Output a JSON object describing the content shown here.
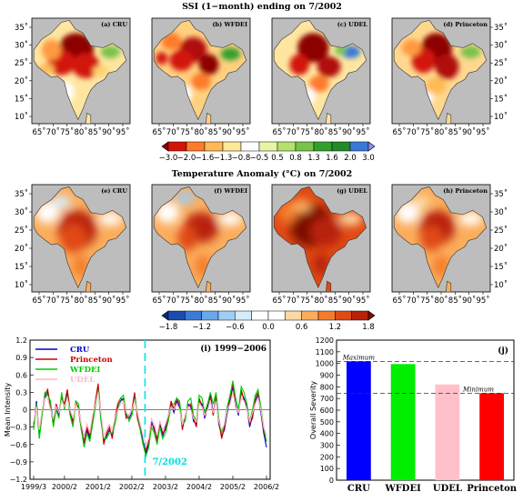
{
  "titles": {
    "ssi": "SSI (1−month) ending on 7/2002",
    "temp": "Temperature Anomaly (°C) on 7/2002"
  },
  "map_lon_ticks": [
    "65˚",
    "70˚",
    "75˚",
    "80˚",
    "85˚",
    "90˚",
    "95˚"
  ],
  "map_lat_ticks": [
    "35˚",
    "30˚",
    "25˚",
    "20˚",
    "15˚",
    "10˚"
  ],
  "ssi_panels": [
    {
      "tag": "(a) CRU"
    },
    {
      "tag": "(b) WFDEI"
    },
    {
      "tag": "(c) UDEL"
    },
    {
      "tag": "(d) Princeton"
    }
  ],
  "temp_panels": [
    {
      "tag": "(e) CRU"
    },
    {
      "tag": "(f) WFDEI"
    },
    {
      "tag": "(g) UDEL"
    },
    {
      "tag": "(h) Princeton"
    }
  ],
  "ssi_colorbar": {
    "labels": [
      "−3.0",
      "−2.0",
      "−1.6",
      "−1.3",
      "−0.8",
      "−0.5",
      "0.5",
      "0.8",
      "1.3",
      "1.6",
      "2.0",
      "3.0"
    ],
    "colors": [
      "#8c0000",
      "#d2140a",
      "#ff7a2a",
      "#ffb955",
      "#ffe89a",
      "#ffffff",
      "#e8f5a8",
      "#b5e06e",
      "#78c34a",
      "#33a02c",
      "#238a2a",
      "#3a78d8",
      "#8c8cf0"
    ]
  },
  "temp_colorbar": {
    "labels": [
      "−1.8",
      "−1.2",
      "−0.6",
      "0.0",
      "0.6",
      "1.2",
      "1.8"
    ],
    "colors": [
      "#0a2a7a",
      "#1a4cb0",
      "#3b7bd8",
      "#6aa8ec",
      "#9fcdf6",
      "#d5ecfc",
      "#ffffff",
      "#ffffff",
      "#fdd9a4",
      "#fbad5c",
      "#f47d2a",
      "#e04a14",
      "#b82008",
      "#7d0a02"
    ]
  },
  "chart_data": [
    {
      "type": "line",
      "title": "(i) 1999−2006",
      "ylabel": "Mean Intensity",
      "xlabel": "",
      "ylim": [
        -1.2,
        1.2
      ],
      "yticks": [
        "1.2",
        "0.9",
        "0.6",
        "0.3",
        "0",
        "−0.3",
        "−0.6",
        "−0.9",
        "−1.2"
      ],
      "xtick_labels": [
        "1999/3",
        "2000/2",
        "2001/2",
        "2002/2",
        "2003/2",
        "2004/2",
        "2005/2",
        "2006/2"
      ],
      "xtick_index": [
        0,
        11,
        23,
        35,
        47,
        59,
        71,
        83
      ],
      "event_index": 40,
      "event_label": "7/2002",
      "series": [
        {
          "name": "CRU",
          "color": "#0000cc",
          "values": [
            -0.3,
            0.15,
            -0.45,
            -0.05,
            0.2,
            0.3,
            0.1,
            -0.2,
            0.05,
            -0.1,
            0.25,
            0.05,
            0.3,
            -0.05,
            -0.2,
            0.1,
            0.05,
            -0.3,
            -0.6,
            -0.35,
            -0.5,
            -0.2,
            0.1,
            0.4,
            -0.15,
            -0.55,
            -0.45,
            -0.35,
            -0.45,
            -0.2,
            0.05,
            0.15,
            0.2,
            -0.1,
            -0.15,
            -0.05,
            0.25,
            -0.1,
            -0.3,
            -0.55,
            -0.75,
            -0.6,
            -0.2,
            -0.35,
            -0.5,
            -0.25,
            -0.45,
            -0.3,
            -0.1,
            0.1,
            -0.05,
            0.15,
            0.05,
            -0.3,
            -0.15,
            0.1,
            0.05,
            -0.2,
            -0.25,
            0.15,
            0.1,
            -0.15,
            0.05,
            0.25,
            -0.05,
            0.2,
            -0.25,
            -0.45,
            -0.35,
            -0.05,
            0.15,
            0.4,
            0.1,
            -0.1,
            0.3,
            0.2,
            0.05,
            -0.3,
            -0.1,
            0.15,
            0.25,
            -0.05,
            -0.4,
            -0.65
          ]
        },
        {
          "name": "Princeton",
          "color": "#cc0000",
          "values": [
            -0.25,
            0.1,
            -0.4,
            -0.05,
            0.25,
            0.35,
            0.05,
            -0.25,
            0.1,
            -0.05,
            0.2,
            0.1,
            0.35,
            0.0,
            -0.25,
            0.15,
            0.0,
            -0.35,
            -0.55,
            -0.3,
            -0.45,
            -0.15,
            0.15,
            0.45,
            -0.1,
            -0.6,
            -0.4,
            -0.3,
            -0.5,
            -0.15,
            0.1,
            0.2,
            0.15,
            -0.15,
            -0.1,
            0.0,
            0.3,
            -0.15,
            -0.35,
            -0.6,
            -0.7,
            -0.55,
            -0.25,
            -0.3,
            -0.55,
            -0.2,
            -0.4,
            -0.35,
            -0.15,
            0.15,
            0.0,
            0.2,
            0.1,
            -0.35,
            -0.1,
            0.05,
            0.1,
            -0.15,
            -0.3,
            0.2,
            0.05,
            -0.1,
            0.1,
            0.2,
            -0.1,
            0.25,
            -0.2,
            -0.5,
            -0.3,
            0.0,
            0.2,
            0.45,
            0.05,
            -0.05,
            0.35,
            0.15,
            0.1,
            -0.25,
            -0.15,
            0.2,
            0.3,
            0.0,
            -0.35,
            -0.55
          ]
        },
        {
          "name": "WFDEI",
          "color": "#00cc00",
          "values": [
            -0.35,
            0.1,
            -0.5,
            -0.1,
            0.3,
            0.25,
            0.15,
            -0.3,
            0.0,
            -0.15,
            0.3,
            0.0,
            0.25,
            -0.1,
            -0.3,
            0.15,
            0.1,
            -0.35,
            -0.65,
            -0.4,
            -0.55,
            -0.25,
            0.05,
            0.35,
            -0.2,
            -0.5,
            -0.5,
            -0.4,
            -0.4,
            -0.25,
            0.0,
            0.2,
            0.25,
            -0.05,
            -0.2,
            -0.1,
            0.2,
            -0.05,
            -0.35,
            -0.6,
            -0.8,
            -0.65,
            -0.3,
            -0.4,
            -0.6,
            -0.3,
            -0.5,
            -0.4,
            -0.2,
            0.05,
            0.1,
            0.2,
            0.15,
            -0.25,
            -0.2,
            0.15,
            0.2,
            -0.1,
            -0.2,
            0.25,
            0.2,
            -0.05,
            0.1,
            0.3,
            0.1,
            0.3,
            -0.15,
            -0.4,
            -0.25,
            0.05,
            0.25,
            0.5,
            0.2,
            0.0,
            0.4,
            0.3,
            0.1,
            -0.2,
            0.0,
            0.25,
            0.35,
            0.05,
            -0.3,
            -0.55
          ]
        },
        {
          "name": "UDEL",
          "color": "#ffb6c8",
          "values": [
            -0.2,
            0.05,
            -0.35,
            0.0,
            0.2,
            0.2,
            0.0,
            -0.15,
            0.05,
            -0.05,
            0.15,
            0.05,
            0.2,
            0.0,
            -0.15,
            0.1,
            0.0,
            -0.25,
            -0.45,
            -0.25,
            -0.4,
            -0.1,
            0.1,
            0.3,
            -0.05,
            -0.45,
            -0.35,
            -0.25,
            -0.35,
            -0.15,
            0.0,
            0.1,
            0.15,
            -0.05,
            -0.1,
            0.0,
            0.15,
            -0.05,
            -0.25,
            -0.45,
            -0.6,
            -0.5,
            -0.15,
            -0.25,
            -0.45,
            -0.2,
            -0.35,
            -0.25,
            -0.1,
            0.05,
            0.0,
            0.1,
            0.0,
            -0.25,
            -0.1,
            0.05,
            0.0,
            -0.15,
            -0.2,
            0.1,
            0.05,
            -0.1,
            0.0,
            0.15,
            -0.05,
            0.15,
            -0.2,
            -0.35,
            -0.25,
            0.0,
            0.1,
            0.3,
            0.05,
            -0.05,
            0.2,
            0.15,
            0.0,
            -0.2,
            -0.05,
            0.1,
            0.2,
            0.0,
            -0.3,
            -0.45
          ]
        }
      ]
    },
    {
      "type": "bar",
      "title": "(j)",
      "ylabel": "Overall Severity",
      "xlabel": "",
      "ylim": [
        0,
        1200
      ],
      "yticks": [
        "0",
        "100",
        "200",
        "300",
        "400",
        "500",
        "600",
        "700",
        "800",
        "900",
        "1000",
        "1100",
        "1200"
      ],
      "categories": [
        "CRU",
        "WFDEI",
        "UDEL",
        "Princeton"
      ],
      "values": [
        1018,
        995,
        820,
        745
      ],
      "colors": [
        "#0000ff",
        "#00ee00",
        "#ffc0cb",
        "#ff0000"
      ],
      "ref_lines": [
        {
          "value": 1018,
          "label": "Maximum"
        },
        {
          "value": 745,
          "label": "Minimum"
        }
      ]
    }
  ]
}
